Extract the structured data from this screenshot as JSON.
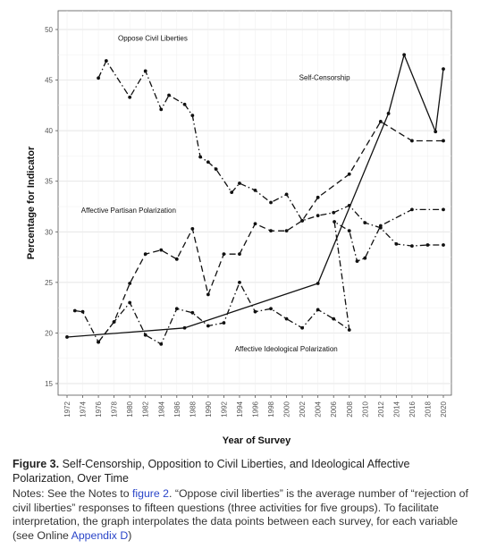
{
  "chart_data": {
    "type": "line",
    "xlabel": "Year of Survey",
    "ylabel": "Percentage for Indicator",
    "xlim": [
      1972,
      2020
    ],
    "ylim": [
      15,
      50
    ],
    "x_ticks": [
      1972,
      1974,
      1976,
      1978,
      1980,
      1982,
      1984,
      1986,
      1988,
      1990,
      1992,
      1994,
      1996,
      1998,
      2000,
      2002,
      2004,
      2006,
      2008,
      2010,
      2012,
      2014,
      2016,
      2018,
      2020
    ],
    "y_ticks": [
      15,
      20,
      25,
      30,
      35,
      40,
      45,
      50
    ],
    "grid": true,
    "series": [
      {
        "name": "Oppose Civil Liberties",
        "line_style": "dash-dot",
        "points": [
          [
            1976,
            45.2
          ],
          [
            1977,
            46.9
          ],
          [
            1980,
            43.3
          ],
          [
            1982,
            45.9
          ],
          [
            1984,
            42.1
          ],
          [
            1985,
            43.5
          ],
          [
            1987,
            42.6
          ],
          [
            1988,
            41.5
          ],
          [
            1989,
            37.4
          ],
          [
            1990,
            36.9
          ],
          [
            1991,
            36.2
          ],
          [
            1993,
            33.9
          ],
          [
            1994,
            34.8
          ],
          [
            1996,
            34.1
          ],
          [
            1998,
            32.9
          ],
          [
            2000,
            33.7
          ],
          [
            2002,
            31.1
          ],
          [
            2004,
            31.6
          ],
          [
            2006,
            31.9
          ],
          [
            2008,
            32.6
          ],
          [
            2010,
            30.9
          ],
          [
            2012,
            30.4
          ],
          [
            2014,
            28.8
          ],
          [
            2016,
            28.6
          ],
          [
            2018,
            28.7
          ],
          [
            2020,
            28.7
          ]
        ]
      },
      {
        "name": "Self-Censorship",
        "line_style": "solid",
        "points": [
          [
            1972,
            19.6
          ],
          [
            1987,
            20.5
          ],
          [
            2004,
            24.9
          ],
          [
            2013,
            41.7
          ],
          [
            2015,
            47.5
          ],
          [
            2019,
            39.9
          ],
          [
            2020,
            46.1
          ]
        ]
      },
      {
        "name": "Affective Partisan Polarization",
        "line_style": "dashed",
        "points": [
          [
            1976,
            19.1
          ],
          [
            1978,
            21.1
          ],
          [
            1980,
            24.9
          ],
          [
            1982,
            27.8
          ],
          [
            1984,
            28.2
          ],
          [
            1986,
            27.3
          ],
          [
            1988,
            30.3
          ],
          [
            1990,
            23.8
          ],
          [
            1992,
            27.8
          ],
          [
            1994,
            27.8
          ],
          [
            1996,
            30.8
          ],
          [
            1998,
            30.1
          ],
          [
            2000,
            30.1
          ],
          [
            2002,
            31.1
          ],
          [
            2004,
            33.4
          ],
          [
            2008,
            35.7
          ],
          [
            2012,
            40.9
          ],
          [
            2016,
            39.0
          ],
          [
            2020,
            39.0
          ]
        ]
      },
      {
        "name": "Affective Ideological Polarization",
        "line_style": "dash-dot",
        "points": [
          [
            1973,
            22.2
          ],
          [
            1974,
            22.1
          ],
          [
            1976,
            19.1
          ],
          [
            1978,
            21.1
          ],
          [
            1980,
            23.0
          ],
          [
            1982,
            19.8
          ],
          [
            1984,
            18.9
          ],
          [
            1986,
            22.4
          ],
          [
            1988,
            22.0
          ],
          [
            1990,
            20.7
          ],
          [
            1992,
            21.0
          ],
          [
            1994,
            25.0
          ],
          [
            1996,
            22.1
          ],
          [
            1998,
            22.4
          ],
          [
            2000,
            21.4
          ],
          [
            2002,
            20.5
          ],
          [
            2004,
            22.3
          ],
          [
            2006,
            21.4
          ],
          [
            2008,
            20.3
          ],
          [
            2006.1,
            31.0
          ],
          [
            2008,
            30.1
          ],
          [
            2009,
            27.1
          ],
          [
            2010,
            27.4
          ],
          [
            2012,
            30.6
          ],
          [
            2016,
            32.2
          ],
          [
            2020,
            32.2
          ]
        ]
      }
    ],
    "annotations": [
      {
        "text": "Oppose Civil Liberties",
        "x": 1978.5,
        "y": 48.9
      },
      {
        "text": "Self-Censorship",
        "x": 2001.6,
        "y": 45.0
      },
      {
        "text": "Affective Partisan Polarization",
        "x": 1973.8,
        "y": 31.9
      },
      {
        "text": "Affective Ideological Polarization",
        "x": 1993.4,
        "y": 18.2
      }
    ]
  },
  "caption": {
    "figure_label": "Figure 3.",
    "figure_title": "Self-Censorship, Opposition to Civil Liberties, and Ideological Affective Polarization, Over Time"
  },
  "notes": {
    "prefix": "Notes: See the Notes to ",
    "link1": "figure 2",
    "middle": ". “Oppose civil liberties” is the average number of “rejection of civil liberties” responses to fifteen questions (three activities for five groups). To facilitate interpretation, the graph interpolates the data points between each survey, for each variable (see Online ",
    "link2": "Appendix D",
    "suffix": ")"
  }
}
